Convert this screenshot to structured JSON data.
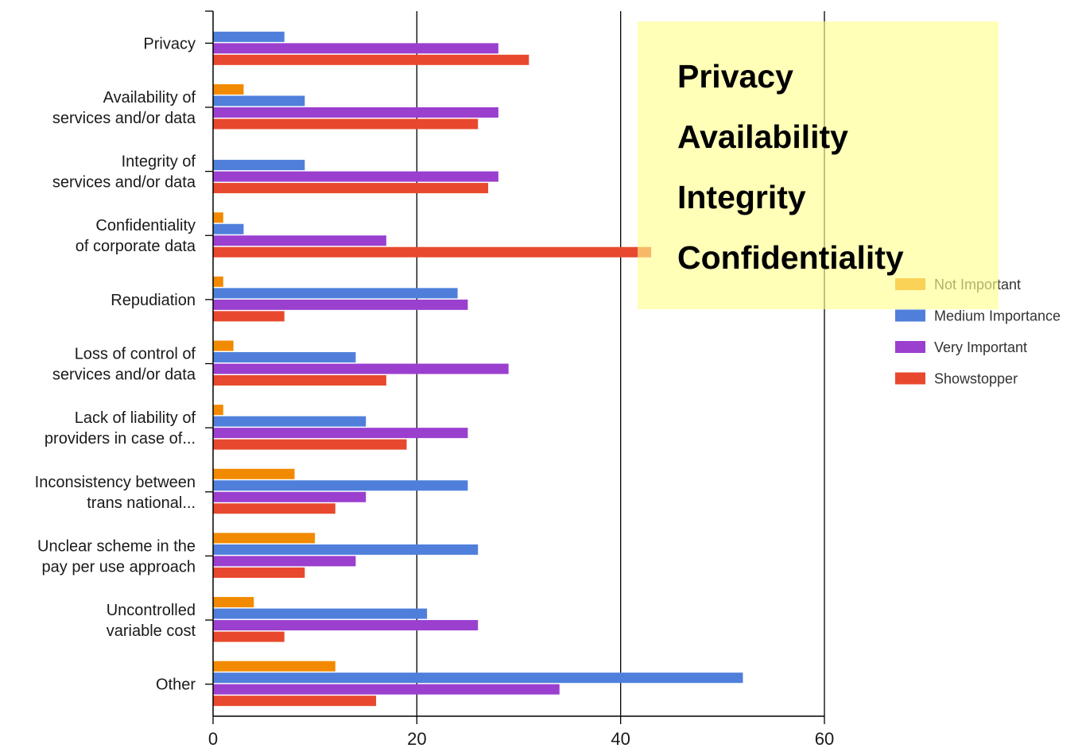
{
  "chart_data": {
    "type": "bar",
    "orientation": "horizontal",
    "categories": [
      [
        "Privacy"
      ],
      [
        "Availability of",
        "services and/or data"
      ],
      [
        "Integrity of",
        "services and/or data"
      ],
      [
        "Confidentiality",
        "of corporate data"
      ],
      [
        "Repudiation"
      ],
      [
        "Loss of control of",
        "services and/or data"
      ],
      [
        "Lack of liability of",
        "providers in case of..."
      ],
      [
        "Inconsistency between",
        "trans national..."
      ],
      [
        "Unclear scheme in the",
        "pay per use approach"
      ],
      [
        "Uncontrolled",
        "variable cost"
      ],
      [
        "Other"
      ]
    ],
    "series": [
      {
        "name": "Not Important",
        "color": "#f28a00",
        "values": [
          0,
          3,
          0,
          1,
          1,
          2,
          1,
          8,
          10,
          4,
          12
        ]
      },
      {
        "name": "Medium Importance",
        "color": "#4f7fdb",
        "values": [
          7,
          9,
          9,
          3,
          24,
          14,
          15,
          25,
          26,
          21,
          52
        ]
      },
      {
        "name": "Very Important",
        "color": "#9b3fcf",
        "values": [
          28,
          28,
          28,
          17,
          25,
          29,
          25,
          15,
          14,
          26,
          34
        ]
      },
      {
        "name": "Showstopper",
        "color": "#e8492e",
        "values": [
          31,
          26,
          27,
          43,
          7,
          17,
          19,
          12,
          9,
          7,
          16
        ]
      }
    ],
    "xlim": [
      0,
      60
    ],
    "xticks": [
      0,
      20,
      40,
      60
    ],
    "grid": "vertical",
    "legend_position": "right",
    "title": "",
    "xlabel": "",
    "ylabel": ""
  },
  "callout": {
    "items": [
      "Privacy",
      "Availability",
      "Integrity",
      "Confidentiality"
    ]
  }
}
